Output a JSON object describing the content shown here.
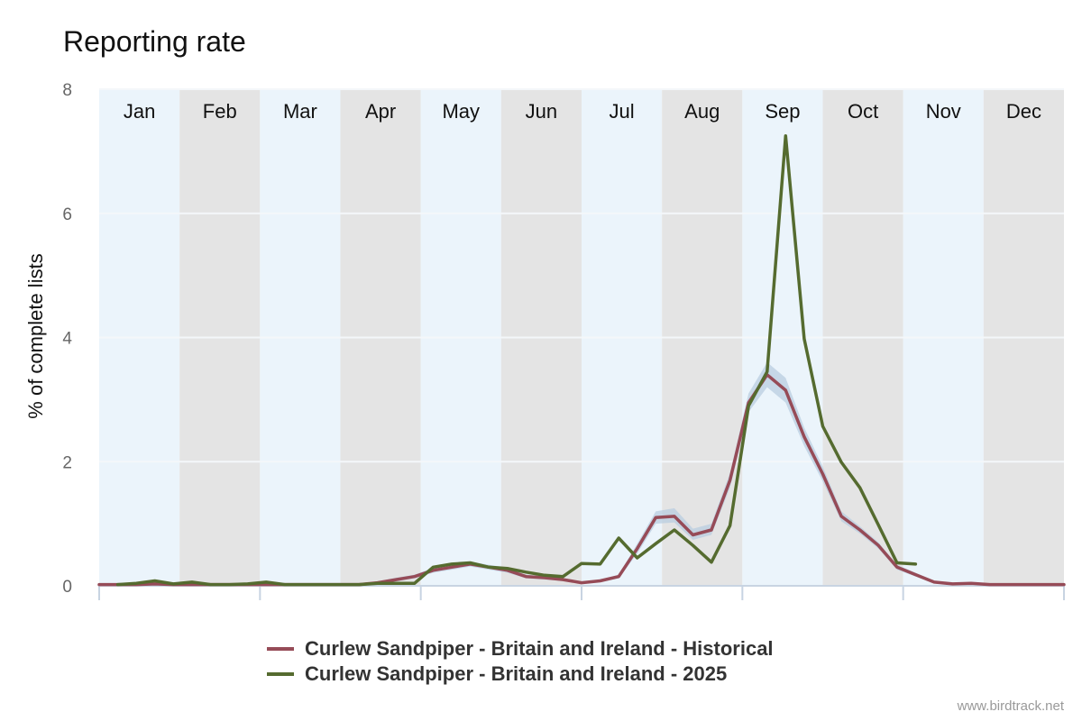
{
  "chart_data": {
    "type": "line",
    "title": "Reporting rate",
    "ylabel": "% of complete lists",
    "xlabel": "",
    "ylim": [
      0,
      8
    ],
    "yticks": [
      "0",
      "2",
      "4",
      "6",
      "8"
    ],
    "months": [
      "Jan",
      "Feb",
      "Mar",
      "Apr",
      "May",
      "Jun",
      "Jul",
      "Aug",
      "Sep",
      "Oct",
      "Nov",
      "Dec"
    ],
    "x_unit": "week of year",
    "grid": "horizontal",
    "legend_position": "bottom",
    "background_bands": {
      "light": "#ebf4fb",
      "dark": "#e4e4e4"
    },
    "series": [
      {
        "name": "Curlew Sandpiper - Britain and Ireland - Historical",
        "color": "#964b57",
        "band_color": "#b9cde0",
        "x": [
          1,
          2,
          3,
          4,
          5,
          6,
          7,
          8,
          9,
          10,
          11,
          12,
          13,
          14,
          15,
          16,
          17,
          18,
          19,
          20,
          21,
          22,
          23,
          24,
          25,
          26,
          27,
          28,
          29,
          30,
          31,
          32,
          33,
          34,
          35,
          36,
          37,
          38,
          39,
          40,
          41,
          42,
          43,
          44,
          45,
          46,
          47,
          48,
          49,
          50,
          51,
          52,
          53
        ],
        "values": [
          0.02,
          0.02,
          0.02,
          0.03,
          0.02,
          0.02,
          0.02,
          0.02,
          0.02,
          0.02,
          0.02,
          0.02,
          0.02,
          0.02,
          0.02,
          0.05,
          0.1,
          0.15,
          0.25,
          0.3,
          0.35,
          0.3,
          0.25,
          0.15,
          0.13,
          0.1,
          0.05,
          0.08,
          0.15,
          0.6,
          1.1,
          1.12,
          0.82,
          0.9,
          1.7,
          2.95,
          3.4,
          3.15,
          2.4,
          1.8,
          1.12,
          0.9,
          0.65,
          0.3,
          0.18,
          0.06,
          0.03,
          0.04,
          0.02,
          0.02,
          0.02,
          0.02,
          0.02
        ],
        "band_low": [
          0.0,
          0.0,
          0.0,
          0.0,
          0.0,
          0.0,
          0.0,
          0.0,
          0.0,
          0.0,
          0.0,
          0.0,
          0.0,
          0.0,
          0.0,
          0.03,
          0.07,
          0.12,
          0.21,
          0.26,
          0.31,
          0.26,
          0.21,
          0.12,
          0.1,
          0.08,
          0.03,
          0.06,
          0.12,
          0.52,
          1.0,
          1.02,
          0.74,
          0.82,
          1.58,
          2.8,
          3.2,
          2.95,
          2.25,
          1.68,
          1.04,
          0.84,
          0.6,
          0.26,
          0.15,
          0.04,
          0.01,
          0.02,
          0.0,
          0.0,
          0.0,
          0.0,
          0.0
        ],
        "band_high": [
          0.04,
          0.04,
          0.04,
          0.05,
          0.04,
          0.04,
          0.04,
          0.04,
          0.04,
          0.04,
          0.04,
          0.04,
          0.04,
          0.04,
          0.04,
          0.07,
          0.13,
          0.18,
          0.29,
          0.34,
          0.39,
          0.34,
          0.29,
          0.18,
          0.16,
          0.12,
          0.07,
          0.1,
          0.18,
          0.68,
          1.2,
          1.25,
          0.92,
          1.0,
          1.82,
          3.1,
          3.6,
          3.35,
          2.55,
          1.92,
          1.2,
          0.96,
          0.7,
          0.34,
          0.21,
          0.08,
          0.05,
          0.06,
          0.04,
          0.04,
          0.04,
          0.04,
          0.04
        ]
      },
      {
        "name": "Curlew Sandpiper - Britain and Ireland - 2025",
        "color": "#556b2f",
        "x": [
          2,
          3,
          4,
          5,
          6,
          7,
          8,
          9,
          10,
          11,
          12,
          13,
          14,
          15,
          16,
          17,
          18,
          19,
          20,
          21,
          22,
          23,
          24,
          25,
          26,
          27,
          28,
          29,
          30,
          31,
          32,
          33,
          34,
          35,
          36,
          37,
          38,
          39,
          40,
          41,
          42,
          43,
          44,
          45
        ],
        "values": [
          0.02,
          0.04,
          0.08,
          0.03,
          0.06,
          0.02,
          0.02,
          0.03,
          0.06,
          0.02,
          0.02,
          0.02,
          0.02,
          0.02,
          0.04,
          0.04,
          0.04,
          0.3,
          0.35,
          0.37,
          0.3,
          0.28,
          0.22,
          0.17,
          0.15,
          0.36,
          0.35,
          0.77,
          0.45,
          0.68,
          0.9,
          0.65,
          0.38,
          0.97,
          2.9,
          3.45,
          7.25,
          3.98,
          2.57,
          1.99,
          1.58,
          0.98,
          0.37,
          0.35
        ]
      }
    ]
  },
  "credit": "www.birdtrack.net"
}
